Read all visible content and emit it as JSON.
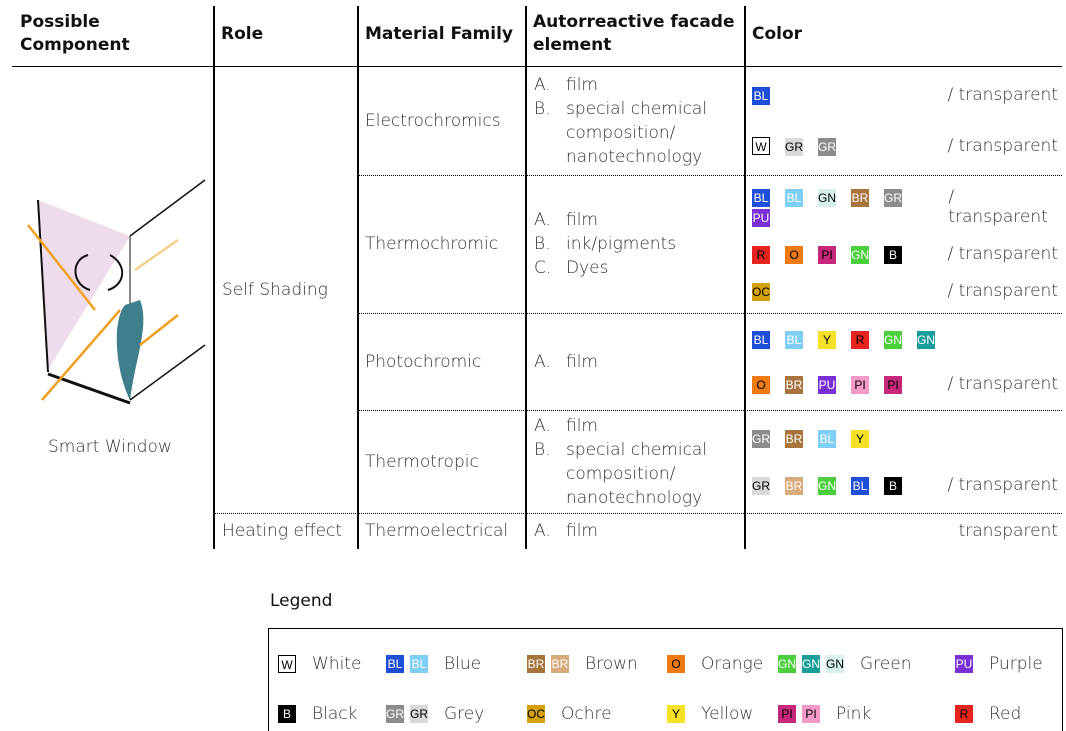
{
  "table": {
    "headers": [
      "Possible Component",
      "Role",
      "Material Family",
      "Autorreactive facade element",
      "Color"
    ],
    "component": "Smart Window",
    "groups": [
      {
        "role": "Self Shading",
        "rows": [
          {
            "material": "Electrochromics",
            "elements": [
              {
                "marker": "A.",
                "text": "film"
              },
              {
                "marker": "B.",
                "text": "special chemical composition/ nanotechnology"
              }
            ],
            "colors": [
              {
                "chips": [
                  {
                    "text": "BL",
                    "bg": "#1f4fd8",
                    "fg": "#ffffff"
                  }
                ],
                "suffix": "/ transparent"
              },
              {
                "chips": [
                  {
                    "text": "W",
                    "bg": "#ffffff",
                    "fg": "#000000"
                  },
                  {
                    "text": "GR",
                    "bg": "#d9d9d9",
                    "fg": "#000000"
                  },
                  {
                    "text": "GR",
                    "bg": "#8c8c8c",
                    "fg": "#ffffff"
                  }
                ],
                "suffix": "/ transparent"
              }
            ]
          },
          {
            "material": "Thermochromic",
            "elements": [
              {
                "marker": "A.",
                "text": "film"
              },
              {
                "marker": "B.",
                "text": "ink/pigments"
              },
              {
                "marker": "C.",
                "text": "Dyes"
              }
            ],
            "colors": [
              {
                "chips": [
                  {
                    "text": "BL",
                    "bg": "#1f4fd8",
                    "fg": "#ffffff"
                  },
                  {
                    "text": "BL",
                    "bg": "#7fcff5",
                    "fg": "#ffffff"
                  },
                  {
                    "text": "GN",
                    "bg": "#d6f0ee",
                    "fg": "#000000"
                  },
                  {
                    "text": "BR",
                    "bg": "#a8743e",
                    "fg": "#ffffff"
                  },
                  {
                    "text": "GR",
                    "bg": "#8c8c8c",
                    "fg": "#ffffff"
                  },
                  {
                    "text": "PU",
                    "bg": "#7b2fd6",
                    "fg": "#ffffff"
                  }
                ],
                "suffix": "/ transparent"
              },
              {
                "chips": [
                  {
                    "text": "R",
                    "bg": "#e5231f",
                    "fg": "#000000"
                  },
                  {
                    "text": "O",
                    "bg": "#f07a12",
                    "fg": "#000000"
                  },
                  {
                    "text": "PI",
                    "bg": "#c8287a",
                    "fg": "#000000"
                  },
                  {
                    "text": "GN",
                    "bg": "#4ccf3c",
                    "fg": "#ffffff"
                  },
                  {
                    "text": "B",
                    "bg": "#000000",
                    "fg": "#ffffff"
                  }
                ],
                "suffix": "/ transparent"
              },
              {
                "chips": [
                  {
                    "text": "OC",
                    "bg": "#d4a10d",
                    "fg": "#000000"
                  }
                ],
                "suffix": "/ transparent"
              }
            ]
          },
          {
            "material": "Photochromic",
            "elements": [
              {
                "marker": "A.",
                "text": "film"
              }
            ],
            "colors": [
              {
                "chips": [
                  {
                    "text": "BL",
                    "bg": "#1f4fd8",
                    "fg": "#ffffff"
                  },
                  {
                    "text": "BL",
                    "bg": "#7fcff5",
                    "fg": "#ffffff"
                  },
                  {
                    "text": "Y",
                    "bg": "#f5e12a",
                    "fg": "#000000"
                  },
                  {
                    "text": "R",
                    "bg": "#e5231f",
                    "fg": "#000000"
                  },
                  {
                    "text": "GN",
                    "bg": "#4ccf3c",
                    "fg": "#ffffff"
                  },
                  {
                    "text": "GN",
                    "bg": "#1a9e9a",
                    "fg": "#ffffff"
                  }
                ]
              },
              {
                "chips": [
                  {
                    "text": "O",
                    "bg": "#f07a12",
                    "fg": "#000000"
                  },
                  {
                    "text": "BR",
                    "bg": "#a8743e",
                    "fg": "#ffffff"
                  },
                  {
                    "text": "PU",
                    "bg": "#7b2fd6",
                    "fg": "#ffffff"
                  },
                  {
                    "text": "PI",
                    "bg": "#f49ac8",
                    "fg": "#000000"
                  },
                  {
                    "text": "PI",
                    "bg": "#c8287a",
                    "fg": "#000000"
                  }
                ],
                "suffix": "/ transparent"
              }
            ]
          },
          {
            "material": "Thermotropic",
            "elements": [
              {
                "marker": "A.",
                "text": "film"
              },
              {
                "marker": "B.",
                "text": "special chemical composition/ nanotechnology"
              }
            ],
            "colors": [
              {
                "chips": [
                  {
                    "text": "GR",
                    "bg": "#8c8c8c",
                    "fg": "#ffffff"
                  },
                  {
                    "text": "BR",
                    "bg": "#a8743e",
                    "fg": "#ffffff"
                  },
                  {
                    "text": "BL",
                    "bg": "#7fcff5",
                    "fg": "#ffffff"
                  },
                  {
                    "text": "Y",
                    "bg": "#f5e12a",
                    "fg": "#000000"
                  }
                ]
              },
              {
                "chips": [
                  {
                    "text": "GR",
                    "bg": "#d9d9d9",
                    "fg": "#000000"
                  },
                  {
                    "text": "BR",
                    "bg": "#d9aa7c",
                    "fg": "#ffffff"
                  },
                  {
                    "text": "GN",
                    "bg": "#4ccf3c",
                    "fg": "#ffffff"
                  },
                  {
                    "text": "BL",
                    "bg": "#1f4fd8",
                    "fg": "#ffffff"
                  },
                  {
                    "text": "B",
                    "bg": "#000000",
                    "fg": "#ffffff"
                  }
                ],
                "suffix": "/ transparent"
              }
            ]
          }
        ]
      },
      {
        "role": "Heating effect",
        "rows": [
          {
            "material": "Thermoelectrical",
            "elements": [
              {
                "marker": "A.",
                "text": "film"
              }
            ],
            "colors": [
              {
                "chips": [],
                "suffix": "transparent"
              }
            ]
          }
        ]
      }
    ]
  },
  "legend": {
    "title": "Legend",
    "items": [
      {
        "chips": [
          {
            "text": "W",
            "bg": "#ffffff",
            "fg": "#000000"
          }
        ],
        "label": "White"
      },
      {
        "chips": [
          {
            "text": "BL",
            "bg": "#1f4fd8",
            "fg": "#ffffff"
          },
          {
            "text": "BL",
            "bg": "#7fcff5",
            "fg": "#ffffff"
          }
        ],
        "label": "Blue"
      },
      {
        "chips": [
          {
            "text": "BR",
            "bg": "#a8743e",
            "fg": "#ffffff"
          },
          {
            "text": "BR",
            "bg": "#d9aa7c",
            "fg": "#ffffff"
          }
        ],
        "label": "Brown"
      },
      {
        "chips": [
          {
            "text": "O",
            "bg": "#f07a12",
            "fg": "#000000"
          }
        ],
        "label": "Orange"
      },
      {
        "chips": [
          {
            "text": "GN",
            "bg": "#4ccf3c",
            "fg": "#ffffff"
          },
          {
            "text": "GN",
            "bg": "#1a9e9a",
            "fg": "#ffffff"
          },
          {
            "text": "GN",
            "bg": "#d6f0ee",
            "fg": "#000000"
          }
        ],
        "label": "Green"
      },
      {
        "chips": [
          {
            "text": "PU",
            "bg": "#7b2fd6",
            "fg": "#ffffff"
          }
        ],
        "label": "Purple"
      },
      {
        "chips": [
          {
            "text": "B",
            "bg": "#000000",
            "fg": "#ffffff"
          }
        ],
        "label": "Black"
      },
      {
        "chips": [
          {
            "text": "GR",
            "bg": "#8c8c8c",
            "fg": "#ffffff"
          },
          {
            "text": "GR",
            "bg": "#d9d9d9",
            "fg": "#000000"
          }
        ],
        "label": "Grey"
      },
      {
        "chips": [
          {
            "text": "OC",
            "bg": "#d4a10d",
            "fg": "#000000"
          }
        ],
        "label": "Ochre"
      },
      {
        "chips": [
          {
            "text": "Y",
            "bg": "#f5e12a",
            "fg": "#000000"
          }
        ],
        "label": "Yellow"
      },
      {
        "chips": [
          {
            "text": "PI",
            "bg": "#c8287a",
            "fg": "#000000"
          },
          {
            "text": "PI",
            "bg": "#f49ac8",
            "fg": "#000000"
          }
        ],
        "label": "Pink"
      },
      {
        "chips": [
          {
            "text": "R",
            "bg": "#e5231f",
            "fg": "#000000"
          }
        ],
        "label": "Red"
      }
    ]
  }
}
